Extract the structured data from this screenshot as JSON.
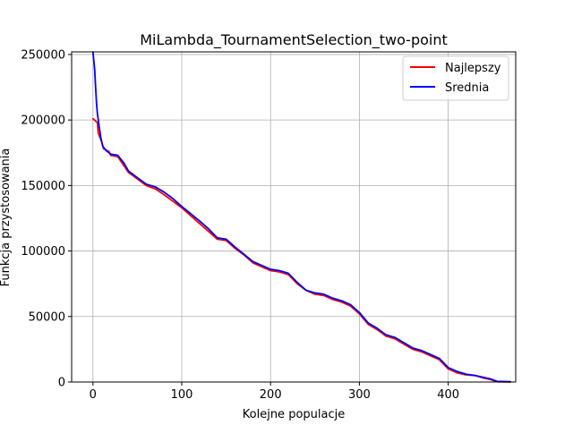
{
  "chart_data": {
    "type": "line",
    "title": "MiLambda_TournamentSelection_two-point",
    "xlabel": "Kolejne populacje",
    "ylabel": "Funkcja przystosowania",
    "xlim": [
      -24,
      476
    ],
    "ylim": [
      0,
      252000
    ],
    "xticks": [
      0,
      100,
      200,
      300,
      400
    ],
    "yticks": [
      0,
      50000,
      100000,
      150000,
      200000,
      250000
    ],
    "grid": true,
    "legend_position": "top-right",
    "series": [
      {
        "name": "Najlepszy",
        "color": "#ff0000",
        "points": [
          [
            0,
            201000
          ],
          [
            5,
            198000
          ],
          [
            6,
            190000
          ],
          [
            10,
            183000
          ],
          [
            12,
            178000
          ],
          [
            18,
            176000
          ],
          [
            20,
            173000
          ],
          [
            28,
            172000
          ],
          [
            35,
            165000
          ],
          [
            40,
            160000
          ],
          [
            50,
            155000
          ],
          [
            60,
            150000
          ],
          [
            70,
            147500
          ],
          [
            80,
            143000
          ],
          [
            90,
            138000
          ],
          [
            100,
            133000
          ],
          [
            110,
            127000
          ],
          [
            120,
            121000
          ],
          [
            130,
            115000
          ],
          [
            140,
            109000
          ],
          [
            150,
            108000
          ],
          [
            160,
            102000
          ],
          [
            170,
            97000
          ],
          [
            180,
            91000
          ],
          [
            190,
            88000
          ],
          [
            200,
            85000
          ],
          [
            210,
            84000
          ],
          [
            220,
            82000
          ],
          [
            230,
            75000
          ],
          [
            240,
            70000
          ],
          [
            250,
            67000
          ],
          [
            260,
            66000
          ],
          [
            270,
            63000
          ],
          [
            280,
            61000
          ],
          [
            290,
            58000
          ],
          [
            300,
            52000
          ],
          [
            310,
            44000
          ],
          [
            320,
            40000
          ],
          [
            330,
            35000
          ],
          [
            340,
            33000
          ],
          [
            350,
            29000
          ],
          [
            360,
            25000
          ],
          [
            370,
            23000
          ],
          [
            380,
            20000
          ],
          [
            390,
            17000
          ],
          [
            400,
            10000
          ],
          [
            410,
            7000
          ],
          [
            420,
            5500
          ],
          [
            430,
            5000
          ],
          [
            440,
            3000
          ],
          [
            447,
            2000
          ],
          [
            455,
            200
          ],
          [
            470,
            0
          ]
        ]
      },
      {
        "name": "Srednia",
        "color": "#0000ff",
        "points": [
          [
            0,
            252000
          ],
          [
            2,
            238000
          ],
          [
            3,
            225000
          ],
          [
            4,
            213000
          ],
          [
            5,
            205000
          ],
          [
            7,
            195000
          ],
          [
            9,
            186000
          ],
          [
            11,
            180000
          ],
          [
            15,
            176500
          ],
          [
            20,
            174000
          ],
          [
            28,
            173000
          ],
          [
            35,
            167000
          ],
          [
            40,
            161000
          ],
          [
            50,
            156000
          ],
          [
            60,
            151000
          ],
          [
            70,
            149000
          ],
          [
            80,
            145000
          ],
          [
            90,
            140000
          ],
          [
            100,
            134000
          ],
          [
            110,
            128500
          ],
          [
            120,
            123000
          ],
          [
            130,
            117000
          ],
          [
            140,
            110000
          ],
          [
            150,
            109000
          ],
          [
            160,
            103000
          ],
          [
            170,
            97500
          ],
          [
            180,
            92000
          ],
          [
            190,
            89000
          ],
          [
            200,
            86000
          ],
          [
            210,
            85000
          ],
          [
            220,
            83000
          ],
          [
            230,
            76000
          ],
          [
            240,
            70000
          ],
          [
            250,
            68000
          ],
          [
            260,
            67000
          ],
          [
            270,
            64000
          ],
          [
            280,
            62000
          ],
          [
            290,
            59000
          ],
          [
            300,
            53000
          ],
          [
            310,
            45000
          ],
          [
            320,
            41000
          ],
          [
            330,
            36000
          ],
          [
            340,
            34000
          ],
          [
            350,
            30000
          ],
          [
            360,
            26000
          ],
          [
            370,
            24000
          ],
          [
            380,
            21000
          ],
          [
            390,
            18000
          ],
          [
            400,
            11000
          ],
          [
            410,
            8000
          ],
          [
            420,
            6000
          ],
          [
            430,
            5000
          ],
          [
            440,
            3500
          ],
          [
            447,
            2500
          ],
          [
            455,
            500
          ],
          [
            470,
            200
          ]
        ]
      }
    ]
  }
}
